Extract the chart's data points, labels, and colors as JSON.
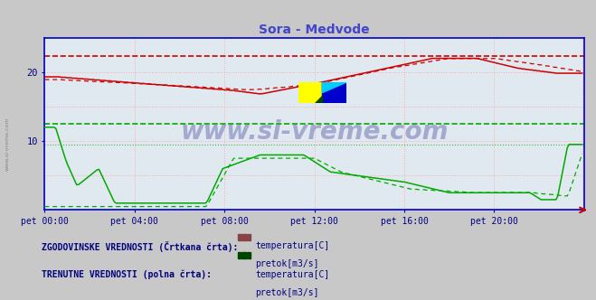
{
  "title": "Sora - Medvode",
  "title_color": "#4444cc",
  "bg_color": "#c8c8c8",
  "plot_bg_color": "#e0e8f0",
  "axis_color": "#0000cc",
  "xlabel_ticks": [
    "pet 00:00",
    "pet 04:00",
    "pet 08:00",
    "pet 12:00",
    "pet 16:00",
    "pet 20:00"
  ],
  "xtick_positions": [
    0,
    48,
    96,
    144,
    192,
    240
  ],
  "n_points": 288,
  "ylim": [
    0,
    25
  ],
  "yticks": [
    10,
    20
  ],
  "temp_color": "#cc0000",
  "flow_color": "#00aa00",
  "ref_temp_high": 22.3,
  "ref_flow_high": 12.5,
  "ref_flow_low": 9.5,
  "watermark": "www.si-vreme.com",
  "legend_hist_label": "ZGODOVINSKE VREDNOSTI (Črtkana črta):",
  "legend_curr_label": "TRENUTNE VREDNOSTI (polna črta):",
  "legend_temp": "temperatura[C]",
  "legend_flow": "pretok[m3/s]"
}
